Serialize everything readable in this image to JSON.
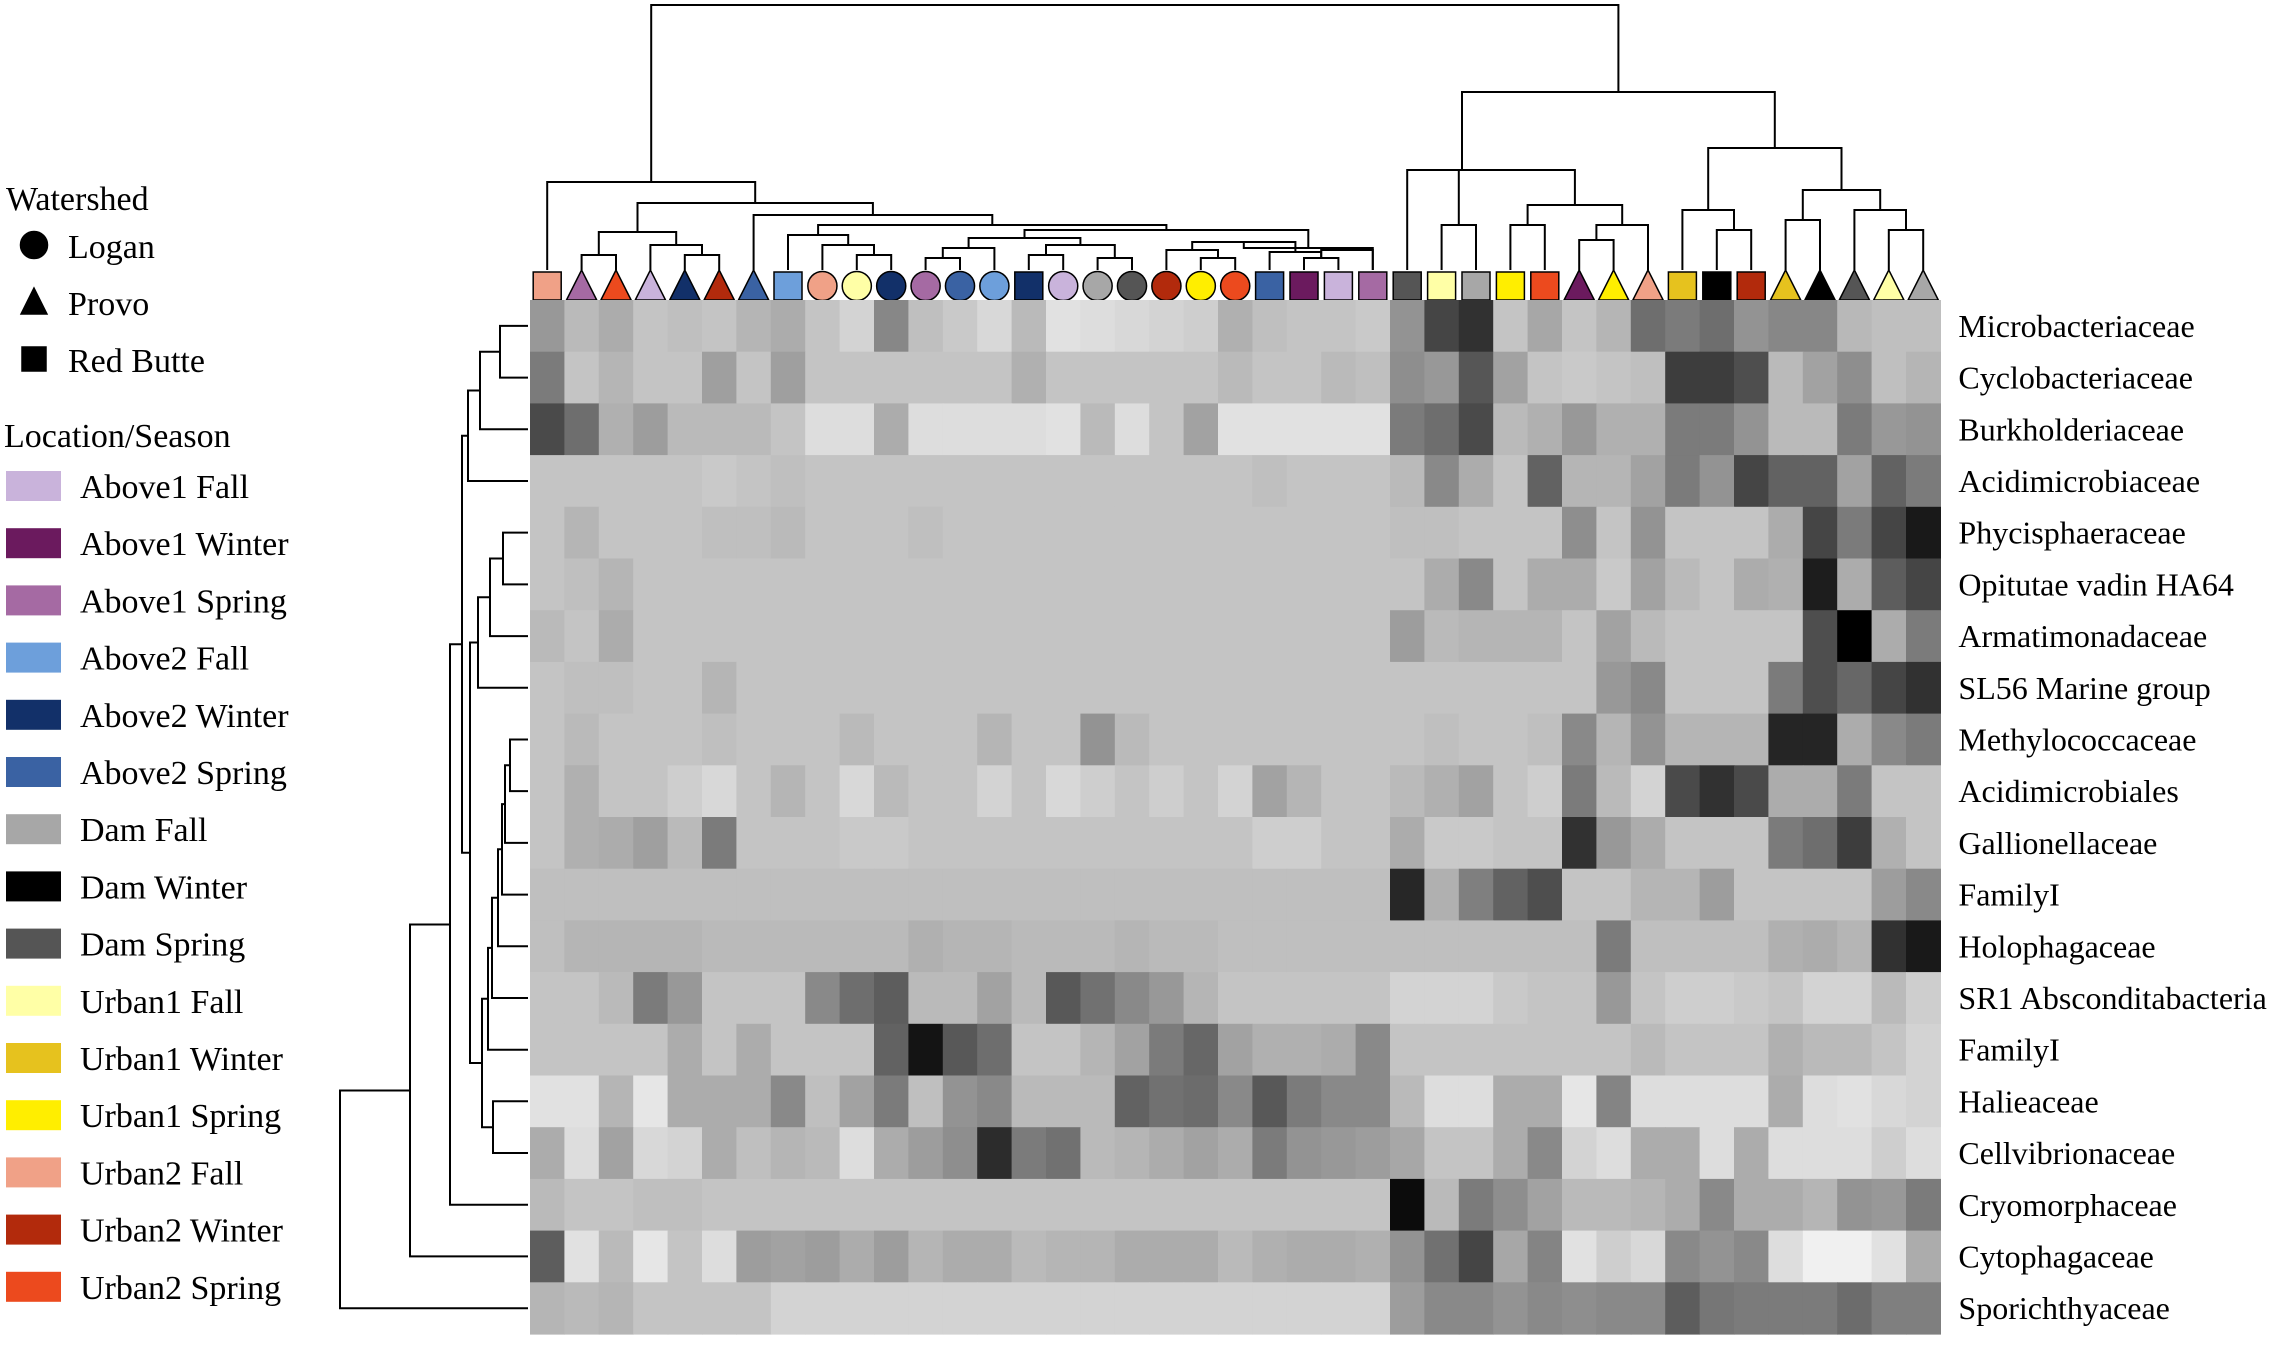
{
  "chart_data": {
    "type": "heatmap",
    "colors": {
      "Above1 Fall": "#c9b3db",
      "Above1 Winter": "#6b1a5e",
      "Above1 Spring": "#a56aa3",
      "Above2 Fall": "#6d9fdb",
      "Above2 Winter": "#123069",
      "Above2 Spring": "#3a62a3",
      "Dam Fall": "#a7a7a7",
      "Dam Winter": "#000000",
      "Dam Spring": "#555555",
      "Urban1 Fall": "#ffffa6",
      "Urban1 Winter": "#e6c21e",
      "Urban1 Spring": "#ffee00",
      "Urban2 Fall": "#f0a187",
      "Urban2 Winter": "#b22a0c",
      "Urban2 Spring": "#ec4a1e"
    },
    "legend": {
      "watershed_title": "Watershed",
      "watershed": [
        {
          "label": "Logan",
          "shape": "circle"
        },
        {
          "label": "Provo",
          "shape": "triangle"
        },
        {
          "label": "Red Butte",
          "shape": "square"
        }
      ],
      "location_title": "Location/Season",
      "locations": [
        "Above1 Fall",
        "Above1 Winter",
        "Above1 Spring",
        "Above2 Fall",
        "Above2 Winter",
        "Above2 Spring",
        "Dam Fall",
        "Dam Winter",
        "Dam Spring",
        "Urban1 Fall",
        "Urban1 Winter",
        "Urban1 Spring",
        "Urban2 Fall",
        "Urban2 Winter",
        "Urban2 Spring"
      ]
    },
    "columns": [
      {
        "shape": "square",
        "group": "Urban2 Fall"
      },
      {
        "shape": "triangle",
        "group": "Above1 Spring"
      },
      {
        "shape": "triangle",
        "group": "Urban2 Spring"
      },
      {
        "shape": "triangle",
        "group": "Above1 Fall"
      },
      {
        "shape": "triangle",
        "group": "Above2 Winter"
      },
      {
        "shape": "triangle",
        "group": "Urban2 Winter"
      },
      {
        "shape": "triangle",
        "group": "Above2 Spring"
      },
      {
        "shape": "square",
        "group": "Above2 Fall"
      },
      {
        "shape": "circle",
        "group": "Urban2 Fall"
      },
      {
        "shape": "circle",
        "group": "Urban1 Fall"
      },
      {
        "shape": "circle",
        "group": "Above2 Winter"
      },
      {
        "shape": "circle",
        "group": "Above1 Spring"
      },
      {
        "shape": "circle",
        "group": "Above2 Spring"
      },
      {
        "shape": "circle",
        "group": "Above2 Fall"
      },
      {
        "shape": "square",
        "group": "Above2 Winter"
      },
      {
        "shape": "circle",
        "group": "Above1 Fall"
      },
      {
        "shape": "circle",
        "group": "Dam Fall"
      },
      {
        "shape": "circle",
        "group": "Dam Spring"
      },
      {
        "shape": "circle",
        "group": "Urban2 Winter"
      },
      {
        "shape": "circle",
        "group": "Urban1 Spring"
      },
      {
        "shape": "circle",
        "group": "Urban2 Spring"
      },
      {
        "shape": "square",
        "group": "Above2 Spring"
      },
      {
        "shape": "square",
        "group": "Above1 Winter"
      },
      {
        "shape": "square",
        "group": "Above1 Fall"
      },
      {
        "shape": "square",
        "group": "Above1 Spring"
      },
      {
        "shape": "square",
        "group": "Dam Spring"
      },
      {
        "shape": "square",
        "group": "Urban1 Fall"
      },
      {
        "shape": "square",
        "group": "Dam Fall"
      },
      {
        "shape": "square",
        "group": "Urban1 Spring"
      },
      {
        "shape": "square",
        "group": "Urban2 Spring"
      },
      {
        "shape": "triangle",
        "group": "Above1 Winter"
      },
      {
        "shape": "triangle",
        "group": "Urban1 Spring"
      },
      {
        "shape": "triangle",
        "group": "Urban2 Fall"
      },
      {
        "shape": "square",
        "group": "Urban1 Winter"
      },
      {
        "shape": "square",
        "group": "Dam Winter"
      },
      {
        "shape": "square",
        "group": "Urban2 Winter"
      },
      {
        "shape": "triangle",
        "group": "Urban1 Winter"
      },
      {
        "shape": "triangle",
        "group": "Dam Winter"
      },
      {
        "shape": "triangle",
        "group": "Dam Spring"
      },
      {
        "shape": "triangle",
        "group": "Urban1 Fall"
      },
      {
        "shape": "triangle",
        "group": "Dam Fall"
      }
    ],
    "rows": [
      {
        "label": "Microbacteriaceae",
        "values": [
          0.38,
          0.24,
          0.3,
          0.2,
          0.22,
          0.2,
          0.26,
          0.3,
          0.2,
          0.14,
          0.45,
          0.22,
          0.18,
          0.12,
          0.24,
          0.08,
          0.1,
          0.12,
          0.14,
          0.16,
          0.28,
          0.22,
          0.2,
          0.2,
          0.18,
          0.4,
          0.72,
          0.8,
          0.2,
          0.32,
          0.2,
          0.26,
          0.55,
          0.5,
          0.55,
          0.4,
          0.45,
          0.45,
          0.25,
          0.22,
          0.22
        ]
      },
      {
        "label": "Cyclobacteriaceae",
        "values": [
          0.5,
          0.2,
          0.26,
          0.2,
          0.2,
          0.35,
          0.2,
          0.35,
          0.2,
          0.2,
          0.2,
          0.2,
          0.2,
          0.2,
          0.28,
          0.2,
          0.2,
          0.2,
          0.2,
          0.2,
          0.24,
          0.2,
          0.2,
          0.24,
          0.22,
          0.42,
          0.38,
          0.65,
          0.34,
          0.2,
          0.18,
          0.2,
          0.22,
          0.75,
          0.75,
          0.68,
          0.24,
          0.34,
          0.42,
          0.22,
          0.26
        ]
      },
      {
        "label": "Burkholderiaceae",
        "values": [
          0.7,
          0.55,
          0.28,
          0.36,
          0.24,
          0.24,
          0.24,
          0.2,
          0.1,
          0.1,
          0.3,
          0.1,
          0.1,
          0.1,
          0.1,
          0.08,
          0.24,
          0.1,
          0.2,
          0.34,
          0.08,
          0.08,
          0.08,
          0.08,
          0.08,
          0.5,
          0.55,
          0.7,
          0.24,
          0.28,
          0.38,
          0.28,
          0.28,
          0.5,
          0.5,
          0.4,
          0.24,
          0.24,
          0.5,
          0.38,
          0.4
        ]
      },
      {
        "label": "Acidimicrobiaceae",
        "values": [
          0.2,
          0.2,
          0.2,
          0.2,
          0.2,
          0.18,
          0.2,
          0.22,
          0.2,
          0.2,
          0.2,
          0.2,
          0.2,
          0.2,
          0.2,
          0.2,
          0.2,
          0.2,
          0.2,
          0.2,
          0.2,
          0.22,
          0.2,
          0.2,
          0.2,
          0.24,
          0.44,
          0.3,
          0.2,
          0.6,
          0.26,
          0.26,
          0.34,
          0.5,
          0.4,
          0.72,
          0.6,
          0.6,
          0.34,
          0.6,
          0.5
        ]
      },
      {
        "label": "Phycisphaeraceae",
        "values": [
          0.2,
          0.26,
          0.2,
          0.2,
          0.2,
          0.22,
          0.22,
          0.24,
          0.2,
          0.2,
          0.2,
          0.22,
          0.2,
          0.2,
          0.2,
          0.2,
          0.2,
          0.2,
          0.2,
          0.2,
          0.2,
          0.2,
          0.2,
          0.2,
          0.2,
          0.22,
          0.22,
          0.2,
          0.2,
          0.2,
          0.42,
          0.2,
          0.4,
          0.2,
          0.2,
          0.2,
          0.3,
          0.72,
          0.5,
          0.72,
          0.9
        ]
      },
      {
        "label": "Opitutae vadin HA64",
        "values": [
          0.2,
          0.22,
          0.26,
          0.2,
          0.2,
          0.2,
          0.2,
          0.2,
          0.2,
          0.2,
          0.2,
          0.2,
          0.2,
          0.2,
          0.2,
          0.2,
          0.2,
          0.2,
          0.2,
          0.2,
          0.2,
          0.2,
          0.2,
          0.2,
          0.2,
          0.2,
          0.3,
          0.44,
          0.2,
          0.3,
          0.3,
          0.18,
          0.34,
          0.24,
          0.2,
          0.3,
          0.28,
          0.88,
          0.3,
          0.62,
          0.72
        ]
      },
      {
        "label": "Armatimonadaceae",
        "values": [
          0.24,
          0.2,
          0.3,
          0.2,
          0.2,
          0.2,
          0.2,
          0.2,
          0.2,
          0.2,
          0.2,
          0.2,
          0.2,
          0.2,
          0.2,
          0.2,
          0.2,
          0.2,
          0.2,
          0.2,
          0.2,
          0.2,
          0.2,
          0.2,
          0.2,
          0.36,
          0.24,
          0.26,
          0.26,
          0.26,
          0.2,
          0.34,
          0.24,
          0.2,
          0.2,
          0.2,
          0.2,
          0.68,
          1.0,
          0.3,
          0.5
        ]
      },
      {
        "label": "SL56 Marine group",
        "values": [
          0.2,
          0.22,
          0.22,
          0.2,
          0.2,
          0.26,
          0.2,
          0.2,
          0.2,
          0.2,
          0.2,
          0.2,
          0.2,
          0.2,
          0.2,
          0.2,
          0.2,
          0.2,
          0.2,
          0.2,
          0.2,
          0.2,
          0.2,
          0.2,
          0.2,
          0.2,
          0.2,
          0.2,
          0.2,
          0.2,
          0.2,
          0.38,
          0.44,
          0.2,
          0.2,
          0.2,
          0.5,
          0.68,
          0.58,
          0.72,
          0.8
        ]
      },
      {
        "label": "Methylococcaceae",
        "values": [
          0.2,
          0.24,
          0.2,
          0.2,
          0.2,
          0.22,
          0.2,
          0.2,
          0.2,
          0.24,
          0.2,
          0.2,
          0.2,
          0.26,
          0.2,
          0.2,
          0.4,
          0.24,
          0.2,
          0.2,
          0.2,
          0.2,
          0.2,
          0.2,
          0.2,
          0.2,
          0.22,
          0.2,
          0.2,
          0.22,
          0.44,
          0.26,
          0.4,
          0.26,
          0.26,
          0.26,
          0.85,
          0.85,
          0.3,
          0.44,
          0.5
        ]
      },
      {
        "label": "Acidimicrobiales",
        "values": [
          0.2,
          0.28,
          0.2,
          0.2,
          0.16,
          0.12,
          0.2,
          0.26,
          0.2,
          0.12,
          0.24,
          0.2,
          0.2,
          0.14,
          0.2,
          0.12,
          0.16,
          0.2,
          0.16,
          0.2,
          0.14,
          0.34,
          0.26,
          0.2,
          0.2,
          0.24,
          0.28,
          0.34,
          0.2,
          0.16,
          0.5,
          0.24,
          0.14,
          0.7,
          0.8,
          0.7,
          0.3,
          0.3,
          0.5,
          0.2,
          0.2
        ]
      },
      {
        "label": "Gallionellaceae",
        "values": [
          0.2,
          0.28,
          0.3,
          0.35,
          0.24,
          0.5,
          0.2,
          0.2,
          0.2,
          0.18,
          0.18,
          0.2,
          0.2,
          0.2,
          0.2,
          0.2,
          0.2,
          0.2,
          0.2,
          0.2,
          0.2,
          0.16,
          0.16,
          0.2,
          0.2,
          0.3,
          0.18,
          0.18,
          0.2,
          0.2,
          0.8,
          0.38,
          0.3,
          0.2,
          0.2,
          0.2,
          0.5,
          0.55,
          0.75,
          0.28,
          0.2
        ]
      },
      {
        "label": "FamilyI",
        "values": [
          0.22,
          0.22,
          0.22,
          0.22,
          0.22,
          0.22,
          0.22,
          0.22,
          0.22,
          0.22,
          0.22,
          0.22,
          0.22,
          0.22,
          0.22,
          0.22,
          0.22,
          0.22,
          0.22,
          0.22,
          0.22,
          0.22,
          0.22,
          0.22,
          0.22,
          0.84,
          0.28,
          0.48,
          0.6,
          0.68,
          0.2,
          0.2,
          0.26,
          0.26,
          0.36,
          0.2,
          0.2,
          0.2,
          0.2,
          0.36,
          0.44
        ]
      },
      {
        "label": "Holophagaceae",
        "values": [
          0.22,
          0.26,
          0.26,
          0.26,
          0.26,
          0.24,
          0.24,
          0.24,
          0.24,
          0.24,
          0.24,
          0.28,
          0.26,
          0.26,
          0.24,
          0.24,
          0.24,
          0.26,
          0.24,
          0.24,
          0.22,
          0.22,
          0.22,
          0.22,
          0.22,
          0.22,
          0.22,
          0.22,
          0.22,
          0.22,
          0.22,
          0.5,
          0.22,
          0.22,
          0.22,
          0.22,
          0.28,
          0.3,
          0.26,
          0.8,
          0.9
        ]
      },
      {
        "label": "SR1 Absconditabacteria",
        "values": [
          0.2,
          0.2,
          0.24,
          0.5,
          0.38,
          0.2,
          0.2,
          0.2,
          0.44,
          0.55,
          0.62,
          0.24,
          0.24,
          0.34,
          0.24,
          0.64,
          0.54,
          0.44,
          0.38,
          0.26,
          0.2,
          0.2,
          0.2,
          0.2,
          0.2,
          0.14,
          0.14,
          0.14,
          0.18,
          0.2,
          0.2,
          0.38,
          0.2,
          0.16,
          0.16,
          0.18,
          0.2,
          0.14,
          0.14,
          0.24,
          0.16
        ]
      },
      {
        "label": "FamilyI",
        "values": [
          0.2,
          0.2,
          0.2,
          0.2,
          0.3,
          0.2,
          0.3,
          0.2,
          0.2,
          0.2,
          0.6,
          0.92,
          0.64,
          0.55,
          0.2,
          0.2,
          0.26,
          0.34,
          0.5,
          0.58,
          0.34,
          0.28,
          0.28,
          0.3,
          0.44,
          0.2,
          0.2,
          0.2,
          0.2,
          0.2,
          0.2,
          0.2,
          0.24,
          0.2,
          0.2,
          0.2,
          0.28,
          0.24,
          0.24,
          0.2,
          0.14
        ]
      },
      {
        "label": "Halieaceae",
        "values": [
          0.08,
          0.08,
          0.26,
          0.06,
          0.3,
          0.3,
          0.3,
          0.44,
          0.22,
          0.34,
          0.5,
          0.22,
          0.4,
          0.44,
          0.24,
          0.24,
          0.24,
          0.6,
          0.54,
          0.56,
          0.44,
          0.64,
          0.5,
          0.44,
          0.44,
          0.24,
          0.1,
          0.1,
          0.3,
          0.3,
          0.06,
          0.46,
          0.1,
          0.1,
          0.1,
          0.1,
          0.3,
          0.1,
          0.08,
          0.12,
          0.14
        ]
      },
      {
        "label": "Cellvibrionaceae",
        "values": [
          0.3,
          0.1,
          0.34,
          0.12,
          0.14,
          0.3,
          0.22,
          0.26,
          0.24,
          0.1,
          0.3,
          0.36,
          0.42,
          0.82,
          0.5,
          0.54,
          0.24,
          0.26,
          0.3,
          0.34,
          0.3,
          0.5,
          0.4,
          0.38,
          0.36,
          0.32,
          0.2,
          0.2,
          0.3,
          0.44,
          0.14,
          0.1,
          0.3,
          0.3,
          0.1,
          0.3,
          0.1,
          0.1,
          0.1,
          0.16,
          0.1
        ]
      },
      {
        "label": "Cryomorphaceae",
        "values": [
          0.24,
          0.2,
          0.2,
          0.22,
          0.22,
          0.2,
          0.2,
          0.2,
          0.2,
          0.2,
          0.2,
          0.2,
          0.2,
          0.2,
          0.2,
          0.2,
          0.2,
          0.2,
          0.2,
          0.2,
          0.2,
          0.2,
          0.2,
          0.2,
          0.2,
          0.95,
          0.24,
          0.5,
          0.42,
          0.34,
          0.24,
          0.24,
          0.26,
          0.3,
          0.44,
          0.3,
          0.3,
          0.26,
          0.4,
          0.38,
          0.5
        ]
      },
      {
        "label": "Cytophagaceae",
        "values": [
          0.62,
          0.08,
          0.24,
          0.06,
          0.2,
          0.1,
          0.36,
          0.34,
          0.36,
          0.3,
          0.36,
          0.26,
          0.3,
          0.3,
          0.24,
          0.26,
          0.26,
          0.3,
          0.3,
          0.3,
          0.24,
          0.28,
          0.3,
          0.3,
          0.28,
          0.4,
          0.54,
          0.72,
          0.32,
          0.46,
          0.08,
          0.16,
          0.12,
          0.44,
          0.4,
          0.44,
          0.1,
          0.02,
          0.02,
          0.08,
          0.3
        ]
      },
      {
        "label": "Sporichthyaceae",
        "values": [
          0.26,
          0.24,
          0.26,
          0.2,
          0.2,
          0.2,
          0.2,
          0.14,
          0.14,
          0.14,
          0.14,
          0.14,
          0.14,
          0.14,
          0.14,
          0.14,
          0.14,
          0.14,
          0.14,
          0.14,
          0.14,
          0.14,
          0.14,
          0.14,
          0.14,
          0.36,
          0.44,
          0.44,
          0.4,
          0.44,
          0.42,
          0.44,
          0.44,
          0.62,
          0.52,
          0.5,
          0.5,
          0.5,
          0.56,
          0.48,
          0.48
        ]
      }
    ]
  }
}
